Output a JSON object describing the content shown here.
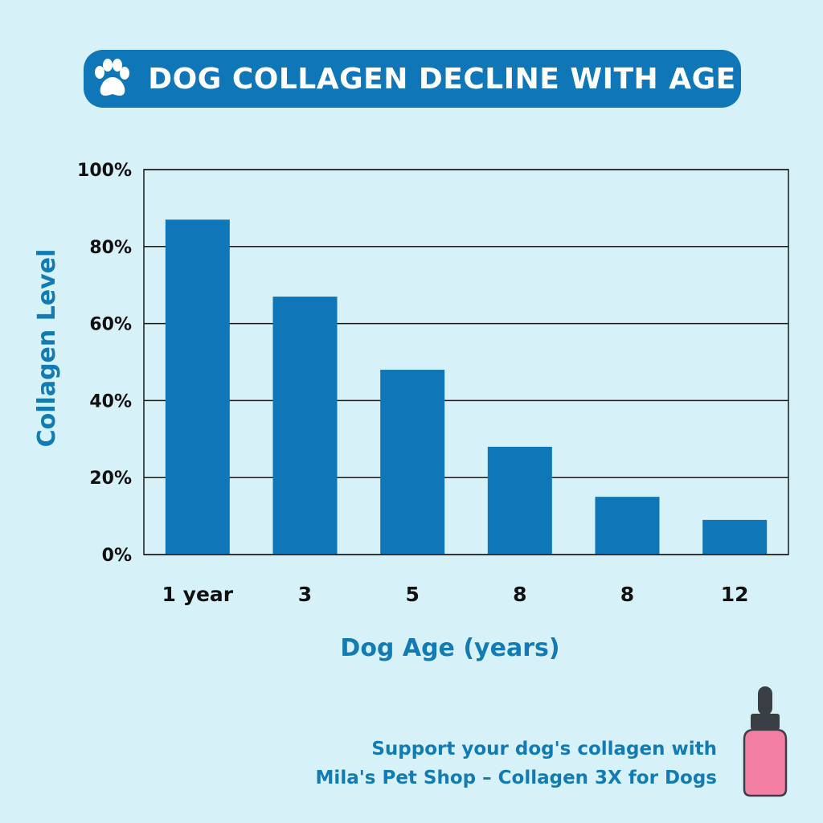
{
  "title": "DOG COLLAGEN DECLINE WITH AGE",
  "footer": {
    "line1": "Support your dog's collagen with",
    "line2": "Mila's Pet Shop – Collagen 3X for Dogs"
  },
  "icons": {
    "title_icon": "paw-icon",
    "product_icon": "dropper-bottle-icon"
  },
  "colors": {
    "background": "#d6f1f8",
    "bar": "#0f77b7",
    "title_bg": "#0f77b7",
    "accent_text": "#137bb3",
    "bottle_body": "#f47fa5",
    "bottle_cap": "#3a3f45"
  },
  "chart_data": {
    "type": "bar",
    "title": "DOG COLLAGEN DECLINE WITH AGE",
    "xlabel": "Dog Age (years)",
    "ylabel": "Collagen Level",
    "categories": [
      "1 year",
      "3",
      "5",
      "8",
      "8",
      "12"
    ],
    "values": [
      87,
      67,
      48,
      28,
      15,
      9
    ],
    "ylim": [
      0,
      100
    ],
    "yticks": [
      0,
      20,
      40,
      60,
      80,
      100
    ],
    "ytick_labels": [
      "0%",
      "20%",
      "40%",
      "60%",
      "80%",
      "100%"
    ],
    "grid": true,
    "legend": "none"
  }
}
